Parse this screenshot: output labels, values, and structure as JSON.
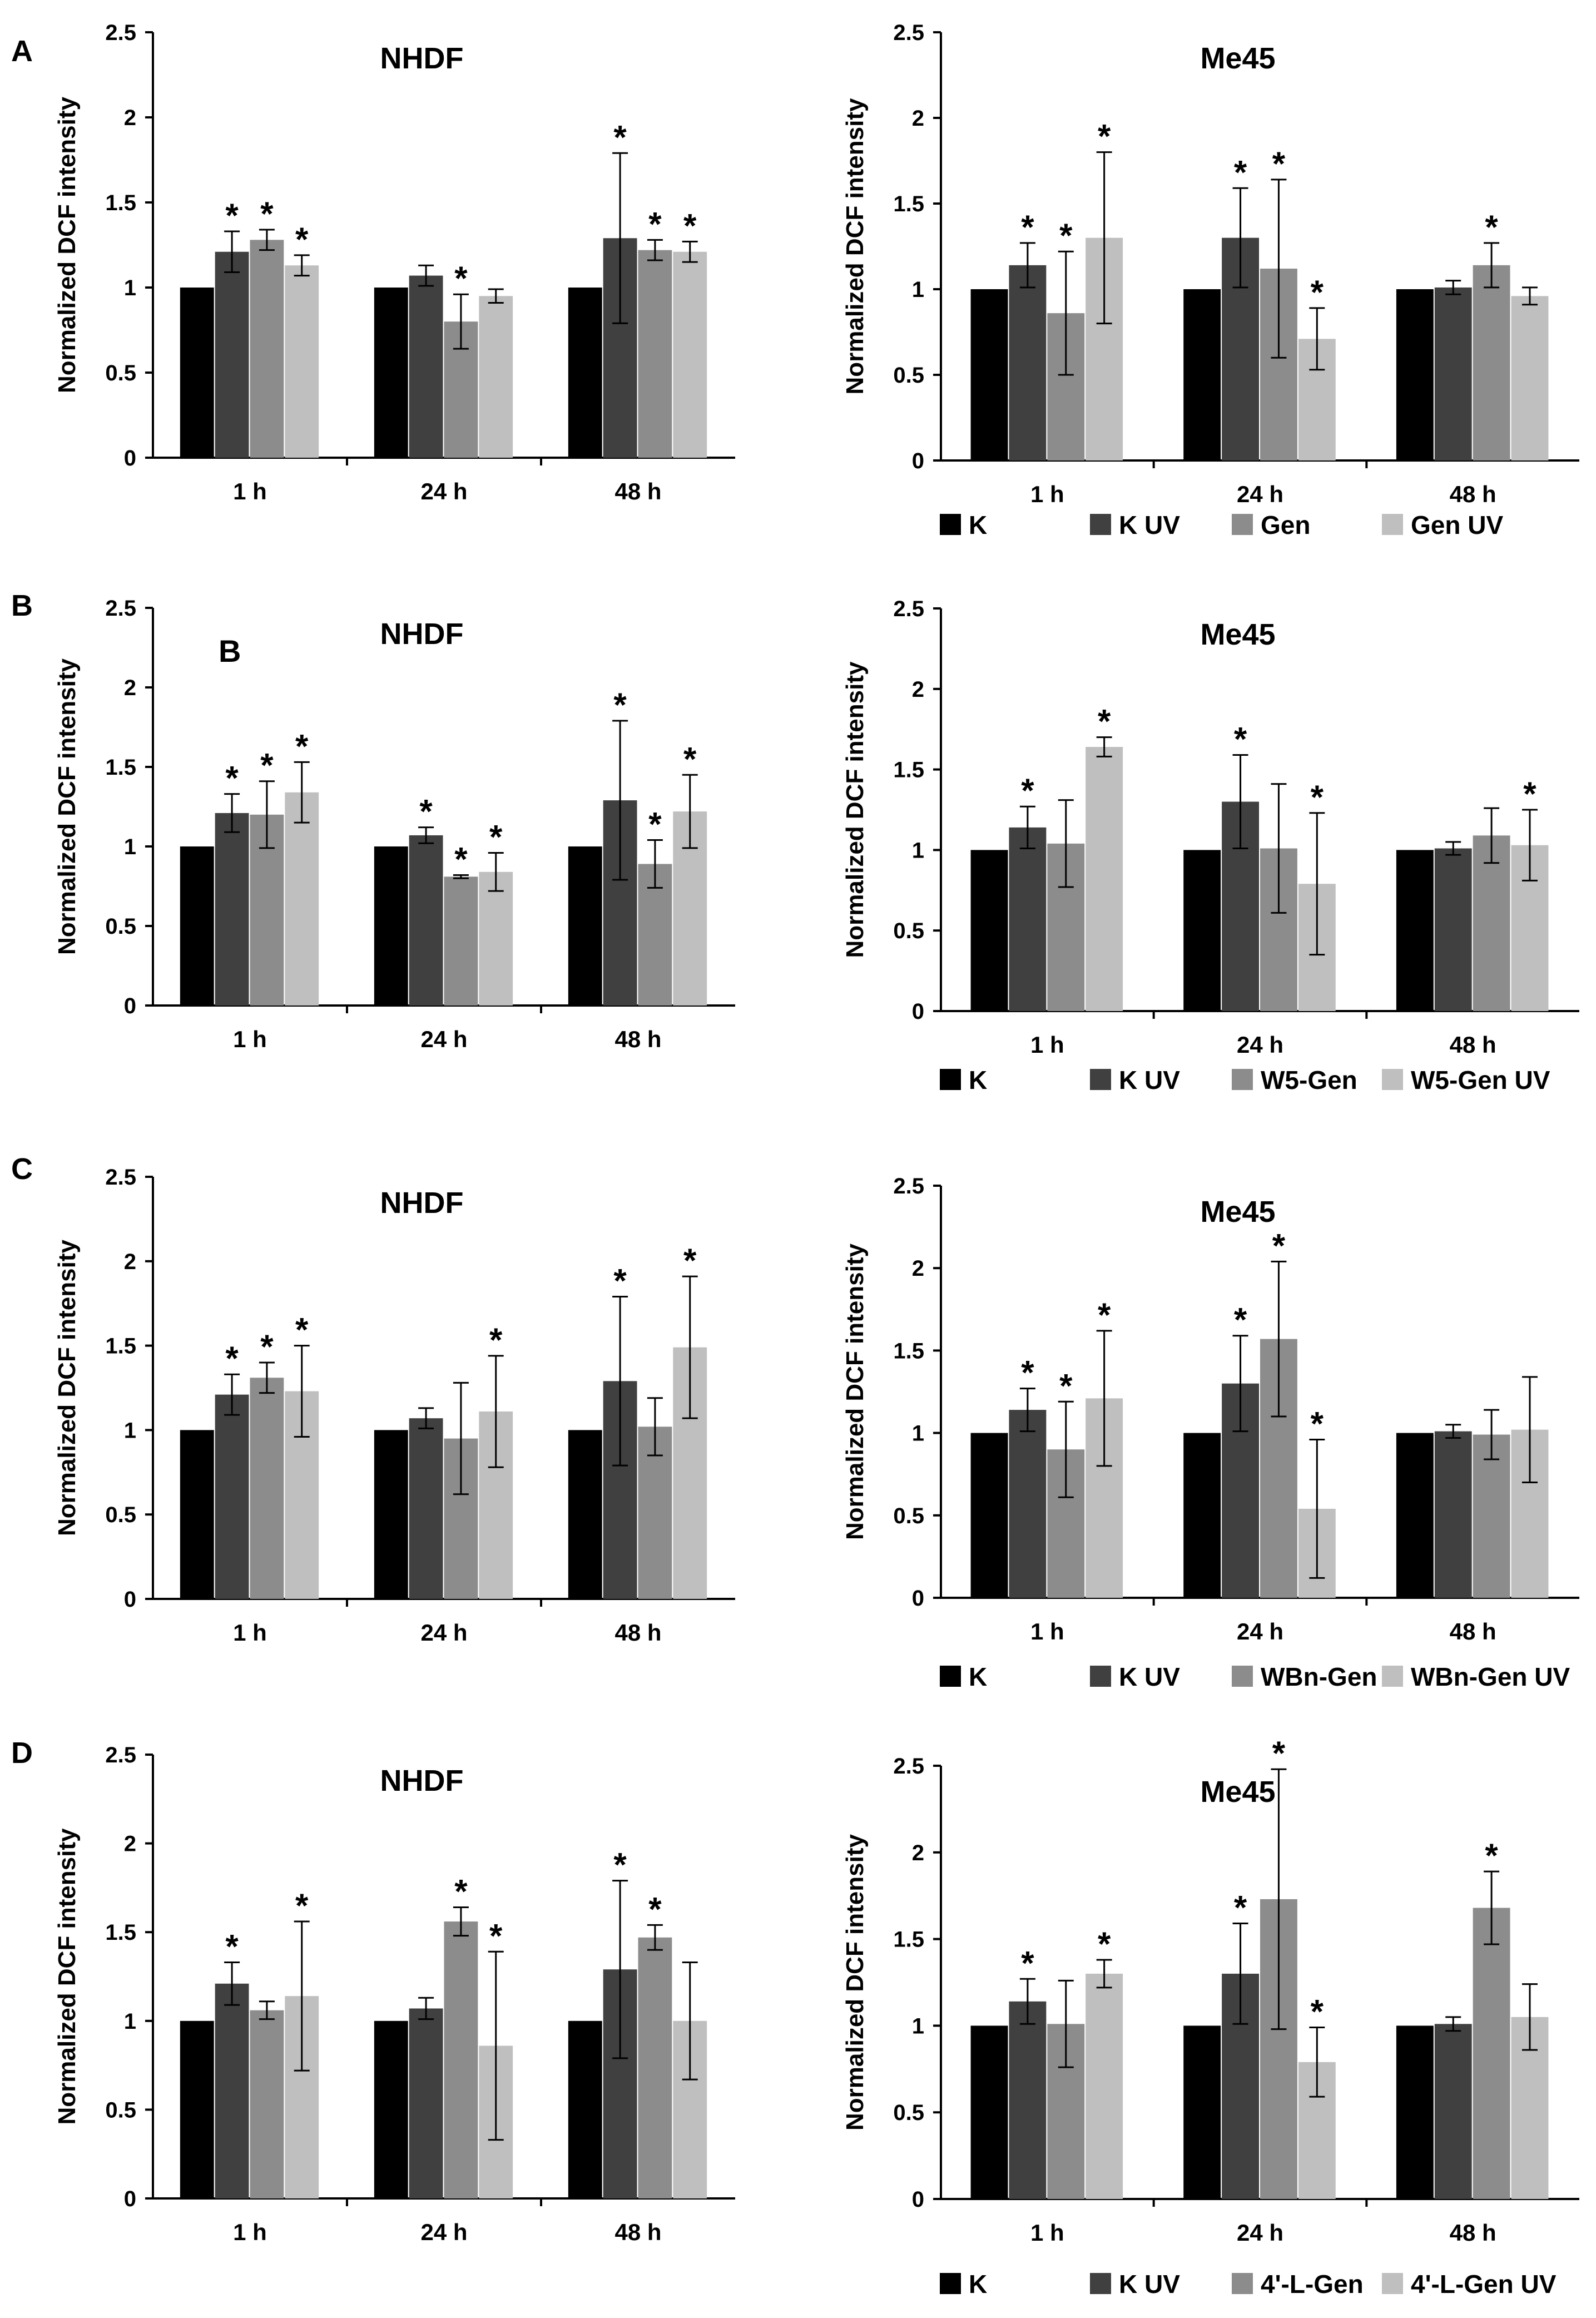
{
  "figure": {
    "row_labels": [
      "A",
      "B",
      "C",
      "D"
    ],
    "stray_label": "B"
  },
  "chart_data": [
    {
      "id": "A-NHDF",
      "row": "A",
      "type": "bar",
      "title": "NHDF",
      "ylabel": "Normalized DCF intensity",
      "ylim": [
        0,
        2.5
      ],
      "yticks": [
        "0",
        "0.5",
        "1",
        "1.5",
        "2",
        "2.5"
      ],
      "categories": [
        "1 h",
        "24 h",
        "48 h"
      ],
      "series": [
        {
          "name": "K",
          "color": "#000000",
          "values": [
            1.0,
            1.0,
            1.0
          ],
          "errors": [
            0,
            0,
            0
          ],
          "sig": [
            false,
            false,
            false
          ]
        },
        {
          "name": "K UV",
          "color": "#404040",
          "values": [
            1.21,
            1.07,
            1.29
          ],
          "errors": [
            0.12,
            0.06,
            0.5
          ],
          "sig": [
            true,
            false,
            true
          ]
        },
        {
          "name": "Gen",
          "color": "#8c8c8c",
          "values": [
            1.28,
            0.8,
            1.22
          ],
          "errors": [
            0.06,
            0.16,
            0.06
          ],
          "sig": [
            true,
            true,
            true
          ]
        },
        {
          "name": "Gen UV",
          "color": "#bfbfbf",
          "values": [
            1.13,
            0.95,
            1.21
          ],
          "errors": [
            0.06,
            0.04,
            0.06
          ],
          "sig": [
            true,
            false,
            true
          ]
        }
      ]
    },
    {
      "id": "A-Me45",
      "row": "A",
      "type": "bar",
      "title": "Me45",
      "ylabel": "Normalized DCF intensity",
      "ylim": [
        0,
        2.5
      ],
      "yticks": [
        "0",
        "0.5",
        "1",
        "1.5",
        "2",
        "2.5"
      ],
      "categories": [
        "1 h",
        "24 h",
        "48 h"
      ],
      "legend": [
        "K",
        "K UV",
        "Gen",
        "Gen UV"
      ],
      "series": [
        {
          "name": "K",
          "color": "#000000",
          "values": [
            1.0,
            1.0,
            1.0
          ],
          "errors": [
            0,
            0,
            0
          ],
          "sig": [
            false,
            false,
            false
          ]
        },
        {
          "name": "K UV",
          "color": "#404040",
          "values": [
            1.14,
            1.3,
            1.01
          ],
          "errors": [
            0.13,
            0.29,
            0.04
          ],
          "sig": [
            true,
            true,
            false
          ]
        },
        {
          "name": "Gen",
          "color": "#8c8c8c",
          "values": [
            0.86,
            1.12,
            1.14
          ],
          "errors": [
            0.36,
            0.52,
            0.13
          ],
          "sig": [
            true,
            true,
            true
          ]
        },
        {
          "name": "Gen UV",
          "color": "#bfbfbf",
          "values": [
            1.3,
            0.71,
            0.96
          ],
          "errors": [
            0.5,
            0.18,
            0.05
          ],
          "sig": [
            true,
            true,
            false
          ]
        }
      ]
    },
    {
      "id": "B-NHDF",
      "row": "B",
      "type": "bar",
      "title": "NHDF",
      "ylabel": "Normalized DCF intensity",
      "ylim": [
        0,
        2.5
      ],
      "yticks": [
        "0",
        "0.5",
        "1",
        "1.5",
        "2",
        "2.5"
      ],
      "categories": [
        "1 h",
        "24 h",
        "48 h"
      ],
      "series": [
        {
          "name": "K",
          "color": "#000000",
          "values": [
            1.0,
            1.0,
            1.0
          ],
          "errors": [
            0,
            0,
            0
          ],
          "sig": [
            false,
            false,
            false
          ]
        },
        {
          "name": "K UV",
          "color": "#404040",
          "values": [
            1.21,
            1.07,
            1.29
          ],
          "errors": [
            0.12,
            0.05,
            0.5
          ],
          "sig": [
            true,
            true,
            true
          ]
        },
        {
          "name": "W5-Gen",
          "color": "#8c8c8c",
          "values": [
            1.2,
            0.81,
            0.89
          ],
          "errors": [
            0.21,
            0.01,
            0.15
          ],
          "sig": [
            true,
            true,
            true
          ]
        },
        {
          "name": "W5-Gen UV",
          "color": "#bfbfbf",
          "values": [
            1.34,
            0.84,
            1.22
          ],
          "errors": [
            0.19,
            0.12,
            0.23
          ],
          "sig": [
            true,
            true,
            true
          ]
        }
      ]
    },
    {
      "id": "B-Me45",
      "row": "B",
      "type": "bar",
      "title": "Me45",
      "ylabel": "Normalized DCF intensity",
      "ylim": [
        0,
        2.5
      ],
      "yticks": [
        "0",
        "0.5",
        "1",
        "1.5",
        "2",
        "2.5"
      ],
      "categories": [
        "1 h",
        "24 h",
        "48 h"
      ],
      "legend": [
        "K",
        "K UV",
        "W5-Gen",
        "W5-Gen UV"
      ],
      "series": [
        {
          "name": "K",
          "color": "#000000",
          "values": [
            1.0,
            1.0,
            1.0
          ],
          "errors": [
            0,
            0,
            0
          ],
          "sig": [
            false,
            false,
            false
          ]
        },
        {
          "name": "K UV",
          "color": "#404040",
          "values": [
            1.14,
            1.3,
            1.01
          ],
          "errors": [
            0.13,
            0.29,
            0.04
          ],
          "sig": [
            true,
            true,
            false
          ]
        },
        {
          "name": "W5-Gen",
          "color": "#8c8c8c",
          "values": [
            1.04,
            1.01,
            1.09
          ],
          "errors": [
            0.27,
            0.4,
            0.17
          ],
          "sig": [
            false,
            false,
            false
          ]
        },
        {
          "name": "W5-Gen UV",
          "color": "#bfbfbf",
          "values": [
            1.64,
            0.79,
            1.03
          ],
          "errors": [
            0.06,
            0.44,
            0.22
          ],
          "sig": [
            true,
            true,
            true
          ]
        }
      ]
    },
    {
      "id": "C-NHDF",
      "row": "C",
      "type": "bar",
      "title": "NHDF",
      "ylabel": "Normalized DCF intensity",
      "ylim": [
        0,
        2.5
      ],
      "yticks": [
        "0",
        "0.5",
        "1",
        "1.5",
        "2",
        "2.5"
      ],
      "categories": [
        "1 h",
        "24 h",
        "48 h"
      ],
      "series": [
        {
          "name": "K",
          "color": "#000000",
          "values": [
            1.0,
            1.0,
            1.0
          ],
          "errors": [
            0,
            0,
            0
          ],
          "sig": [
            false,
            false,
            false
          ]
        },
        {
          "name": "K UV",
          "color": "#404040",
          "values": [
            1.21,
            1.07,
            1.29
          ],
          "errors": [
            0.12,
            0.06,
            0.5
          ],
          "sig": [
            true,
            false,
            true
          ]
        },
        {
          "name": "WBn-Gen",
          "color": "#8c8c8c",
          "values": [
            1.31,
            0.95,
            1.02
          ],
          "errors": [
            0.09,
            0.33,
            0.17
          ],
          "sig": [
            true,
            false,
            false
          ]
        },
        {
          "name": "WBn-Gen UV",
          "color": "#bfbfbf",
          "values": [
            1.23,
            1.11,
            1.49
          ],
          "errors": [
            0.27,
            0.33,
            0.42
          ],
          "sig": [
            true,
            true,
            true
          ]
        }
      ]
    },
    {
      "id": "C-Me45",
      "row": "C",
      "type": "bar",
      "title": "Me45",
      "ylabel": "Normalized DCF intensity",
      "ylim": [
        0,
        2.5
      ],
      "yticks": [
        "0",
        "0.5",
        "1",
        "1.5",
        "2",
        "2.5"
      ],
      "categories": [
        "1 h",
        "24 h",
        "48 h"
      ],
      "legend": [
        "K",
        "K UV",
        "WBn-Gen",
        "WBn-Gen UV"
      ],
      "series": [
        {
          "name": "K",
          "color": "#000000",
          "values": [
            1.0,
            1.0,
            1.0
          ],
          "errors": [
            0,
            0,
            0
          ],
          "sig": [
            false,
            false,
            false
          ]
        },
        {
          "name": "K UV",
          "color": "#404040",
          "values": [
            1.14,
            1.3,
            1.01
          ],
          "errors": [
            0.13,
            0.29,
            0.04
          ],
          "sig": [
            true,
            true,
            false
          ]
        },
        {
          "name": "WBn-Gen",
          "color": "#8c8c8c",
          "values": [
            0.9,
            1.57,
            0.99
          ],
          "errors": [
            0.29,
            0.47,
            0.15
          ],
          "sig": [
            true,
            true,
            false
          ]
        },
        {
          "name": "WBn-Gen UV",
          "color": "#bfbfbf",
          "values": [
            1.21,
            0.54,
            1.02
          ],
          "errors": [
            0.41,
            0.42,
            0.32
          ],
          "sig": [
            true,
            true,
            false
          ]
        }
      ]
    },
    {
      "id": "D-NHDF",
      "row": "D",
      "type": "bar",
      "title": "NHDF",
      "ylabel": "Normalized DCF intensity",
      "ylim": [
        0,
        2.5
      ],
      "yticks": [
        "0",
        "0.5",
        "1",
        "1.5",
        "2",
        "2.5"
      ],
      "categories": [
        "1 h",
        "24 h",
        "48 h"
      ],
      "series": [
        {
          "name": "K",
          "color": "#000000",
          "values": [
            1.0,
            1.0,
            1.0
          ],
          "errors": [
            0,
            0,
            0
          ],
          "sig": [
            false,
            false,
            false
          ]
        },
        {
          "name": "K UV",
          "color": "#404040",
          "values": [
            1.21,
            1.07,
            1.29
          ],
          "errors": [
            0.12,
            0.06,
            0.5
          ],
          "sig": [
            true,
            false,
            true
          ]
        },
        {
          "name": "4'-L-Gen",
          "color": "#8c8c8c",
          "values": [
            1.06,
            1.56,
            1.47
          ],
          "errors": [
            0.05,
            0.08,
            0.07
          ],
          "sig": [
            false,
            true,
            true
          ]
        },
        {
          "name": "4'-L-Gen UV",
          "color": "#bfbfbf",
          "values": [
            1.14,
            0.86,
            1.0
          ],
          "errors": [
            0.42,
            0.53,
            0.33
          ],
          "sig": [
            true,
            true,
            false
          ]
        }
      ]
    },
    {
      "id": "D-Me45",
      "row": "D",
      "type": "bar",
      "title": "Me45",
      "ylabel": "Normalized DCF intensity",
      "ylim": [
        0,
        2.5
      ],
      "yticks": [
        "0",
        "0.5",
        "1",
        "1.5",
        "2",
        "2.5"
      ],
      "categories": [
        "1 h",
        "24 h",
        "48 h"
      ],
      "legend": [
        "K",
        "K UV",
        "4'-L-Gen",
        "4'-L-Gen UV"
      ],
      "series": [
        {
          "name": "K",
          "color": "#000000",
          "values": [
            1.0,
            1.0,
            1.0
          ],
          "errors": [
            0,
            0,
            0
          ],
          "sig": [
            false,
            false,
            false
          ]
        },
        {
          "name": "K UV",
          "color": "#404040",
          "values": [
            1.14,
            1.3,
            1.01
          ],
          "errors": [
            0.13,
            0.29,
            0.04
          ],
          "sig": [
            true,
            true,
            false
          ]
        },
        {
          "name": "4'-L-Gen",
          "color": "#8c8c8c",
          "values": [
            1.01,
            1.73,
            1.68
          ],
          "errors": [
            0.25,
            0.75,
            0.21
          ],
          "sig": [
            false,
            true,
            true
          ]
        },
        {
          "name": "4'-L-Gen UV",
          "color": "#bfbfbf",
          "values": [
            1.3,
            0.79,
            1.05
          ],
          "errors": [
            0.08,
            0.2,
            0.19
          ],
          "sig": [
            true,
            true,
            false
          ]
        }
      ]
    }
  ]
}
